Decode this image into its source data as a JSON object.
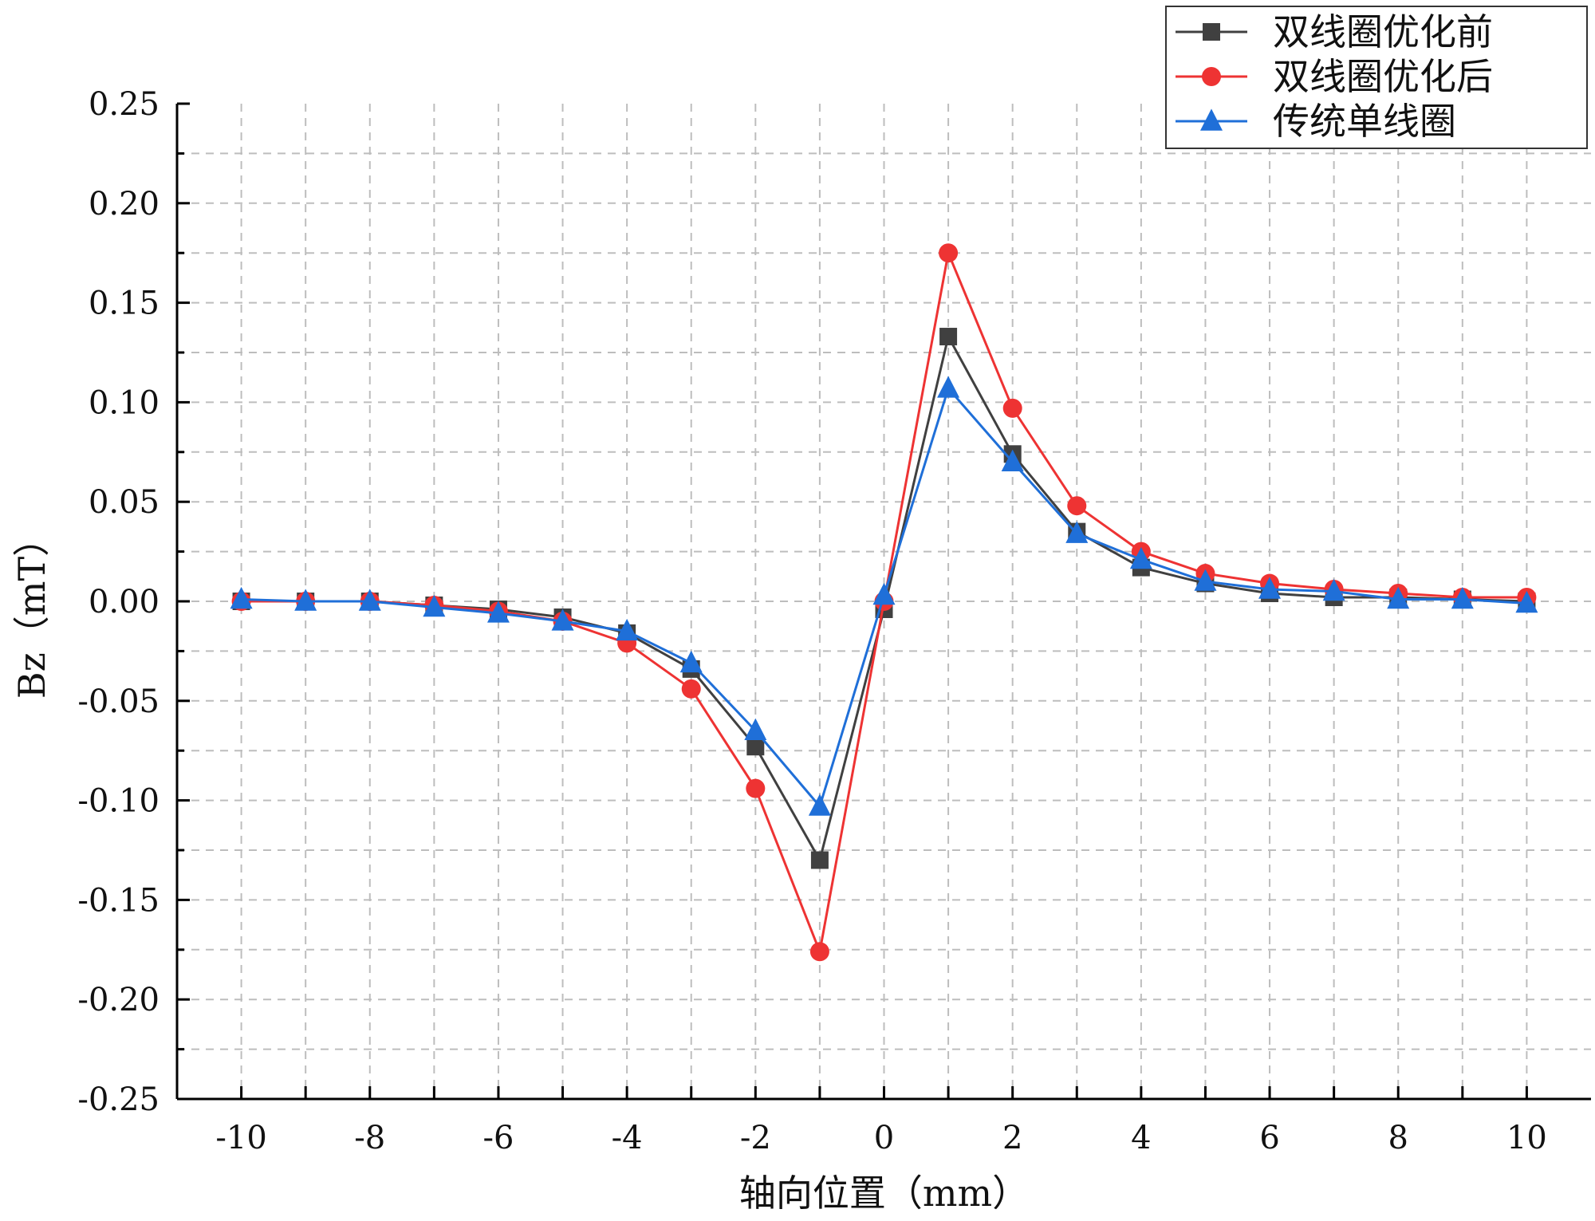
{
  "chart_data": {
    "type": "line",
    "title": "",
    "xlabel": "轴向位置（mm）",
    "ylabel": "Bz（mT）",
    "xlim": [
      -11,
      11
    ],
    "ylim": [
      -0.25,
      0.25
    ],
    "x_ticks": [
      -10,
      -8,
      -6,
      -4,
      -2,
      0,
      2,
      4,
      6,
      8,
      10
    ],
    "x_tick_labels": [
      "-10",
      "-8",
      "-6",
      "-4",
      "-2",
      "0",
      "2",
      "4",
      "6",
      "8",
      "10"
    ],
    "y_ticks": [
      0.25,
      0.2,
      0.15,
      0.1,
      0.05,
      0.0,
      -0.05,
      -0.1,
      -0.15,
      -0.2,
      -0.25
    ],
    "y_tick_labels": [
      "0.25",
      "0.20",
      "0.15",
      "0.10",
      "0.05",
      "0.00",
      "-0.05",
      "-0.10",
      "-0.15",
      "-0.20",
      "-0.25"
    ],
    "grid": true,
    "legend_position": "top-right",
    "x": [
      -10,
      -9,
      -8,
      -7,
      -6,
      -5,
      -4,
      -3,
      -2,
      -1,
      0,
      1,
      2,
      3,
      4,
      5,
      6,
      7,
      8,
      9,
      10
    ],
    "series": [
      {
        "name": "双线圈优化前",
        "color": "#404040",
        "marker": "square",
        "values": [
          0.0,
          0.0,
          0.0,
          -0.002,
          -0.004,
          -0.008,
          -0.016,
          -0.034,
          -0.073,
          -0.13,
          -0.004,
          0.133,
          0.074,
          0.035,
          0.017,
          0.009,
          0.004,
          0.002,
          0.002,
          0.001,
          0.0
        ]
      },
      {
        "name": "双线圈优化后",
        "color": "#ee3333",
        "marker": "circle",
        "values": [
          0.0,
          0.0,
          0.0,
          -0.002,
          -0.005,
          -0.01,
          -0.021,
          -0.044,
          -0.094,
          -0.176,
          0.0,
          0.175,
          0.097,
          0.048,
          0.025,
          0.014,
          0.009,
          0.006,
          0.004,
          0.002,
          0.002
        ]
      },
      {
        "name": "传统单线圈",
        "color": "#1f6fd8",
        "marker": "triangle",
        "values": [
          0.001,
          0.0,
          0.0,
          -0.003,
          -0.006,
          -0.01,
          -0.015,
          -0.031,
          -0.065,
          -0.103,
          0.003,
          0.107,
          0.07,
          0.034,
          0.021,
          0.01,
          0.006,
          0.005,
          0.001,
          0.001,
          -0.001
        ]
      }
    ]
  }
}
